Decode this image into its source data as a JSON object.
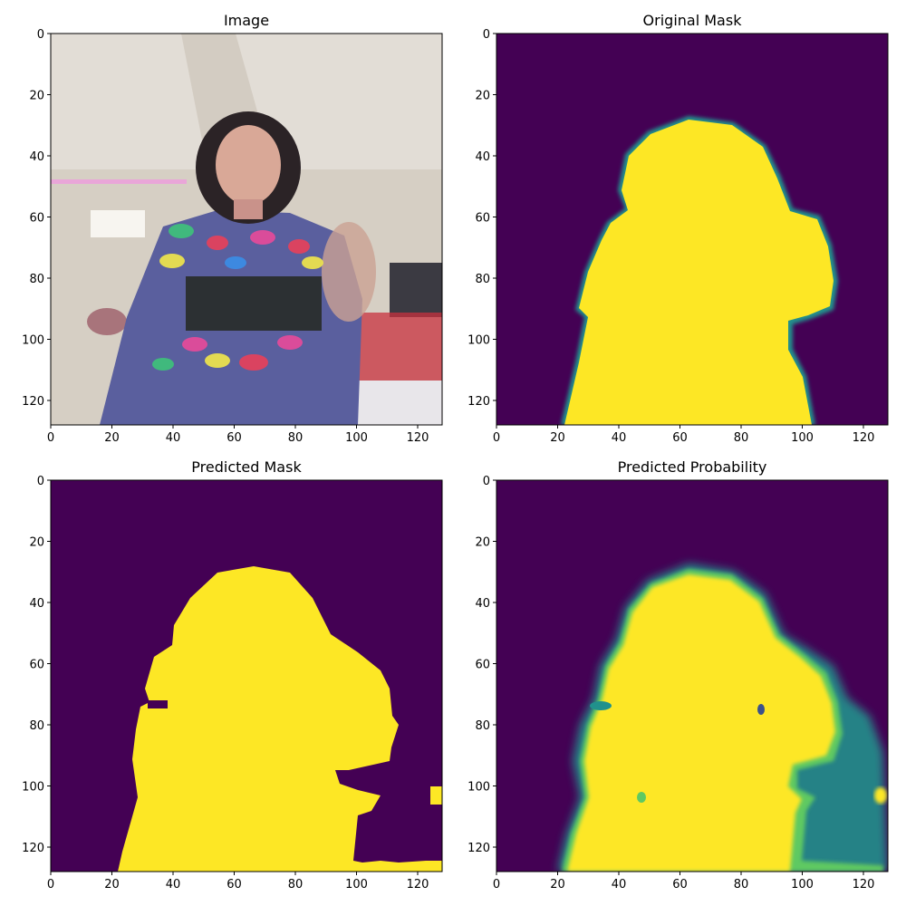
{
  "chart_data": [
    {
      "type": "image",
      "title": "Image",
      "xlim": [
        0,
        128
      ],
      "ylim": [
        128,
        0
      ],
      "xticks": [
        0,
        20,
        40,
        60,
        80,
        100,
        120
      ],
      "yticks": [
        0,
        20,
        40,
        60,
        80,
        100,
        120
      ],
      "xtick_labels": [
        "0",
        "20",
        "40",
        "60",
        "80",
        "100",
        "120"
      ],
      "ytick_labels": [
        "0",
        "20",
        "40",
        "60",
        "80",
        "100",
        "120"
      ]
    },
    {
      "type": "heatmap",
      "title": "Original Mask",
      "colormap": "viridis",
      "xlim": [
        0,
        128
      ],
      "ylim": [
        128,
        0
      ],
      "xticks": [
        0,
        20,
        40,
        60,
        80,
        100,
        120
      ],
      "yticks": [
        0,
        20,
        40,
        60,
        80,
        100,
        120
      ],
      "xtick_labels": [
        "0",
        "20",
        "40",
        "60",
        "80",
        "100",
        "120"
      ],
      "ytick_labels": [
        "0",
        "20",
        "40",
        "60",
        "80",
        "100",
        "120"
      ]
    },
    {
      "type": "heatmap",
      "title": "Predicted Mask",
      "colormap": "viridis",
      "xlim": [
        0,
        128
      ],
      "ylim": [
        128,
        0
      ],
      "xticks": [
        0,
        20,
        40,
        60,
        80,
        100,
        120
      ],
      "yticks": [
        0,
        20,
        40,
        60,
        80,
        100,
        120
      ],
      "xtick_labels": [
        "0",
        "20",
        "40",
        "60",
        "80",
        "100",
        "120"
      ],
      "ytick_labels": [
        "0",
        "20",
        "40",
        "60",
        "80",
        "100",
        "120"
      ]
    },
    {
      "type": "heatmap",
      "title": "Predicted Probability",
      "colormap": "viridis",
      "xlim": [
        0,
        128
      ],
      "ylim": [
        128,
        0
      ],
      "xticks": [
        0,
        20,
        40,
        60,
        80,
        100,
        120
      ],
      "yticks": [
        0,
        20,
        40,
        60,
        80,
        100,
        120
      ],
      "xtick_labels": [
        "0",
        "20",
        "40",
        "60",
        "80",
        "100",
        "120"
      ],
      "ytick_labels": [
        "0",
        "20",
        "40",
        "60",
        "80",
        "100",
        "120"
      ]
    }
  ],
  "colors": {
    "mask_background": "#440154",
    "mask_foreground": "#fde725",
    "edge_teal": "#21918c",
    "edge_green": "#5ec962",
    "dress_blue": "#5a5f9e",
    "wall": "#d8d2c8"
  }
}
